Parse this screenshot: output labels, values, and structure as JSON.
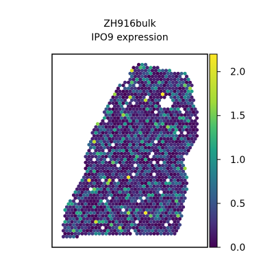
{
  "chart_data": {
    "type": "scatter",
    "title_line1": "ZH916bulk",
    "title_line2": "IPO9 expression",
    "xlabel": "",
    "ylabel": "",
    "colormap": "viridis",
    "colorbar": {
      "vmin": 0.0,
      "vmax": 2.2,
      "ticks": [
        0.0,
        0.5,
        1.0,
        1.5,
        2.0
      ],
      "tick_labels": [
        "0.0",
        "0.5",
        "1.0",
        "1.5",
        "2.0"
      ]
    },
    "spot_grid_step": 5,
    "tissue_outline": [
      [
        195,
        95
      ],
      [
        209,
        93
      ],
      [
        235,
        100
      ],
      [
        255,
        104
      ],
      [
        270,
        107
      ],
      [
        281,
        118
      ],
      [
        283,
        150
      ],
      [
        290,
        162
      ],
      [
        290,
        200
      ],
      [
        280,
        213
      ],
      [
        273,
        228
      ],
      [
        268,
        240
      ],
      [
        275,
        260
      ],
      [
        273,
        280
      ],
      [
        268,
        300
      ],
      [
        265,
        320
      ],
      [
        262,
        340
      ],
      [
        240,
        345
      ],
      [
        180,
        343
      ],
      [
        140,
        344
      ],
      [
        90,
        347
      ],
      [
        95,
        300
      ],
      [
        113,
        273
      ],
      [
        123,
        253
      ],
      [
        125,
        227
      ],
      [
        130,
        210
      ],
      [
        135,
        190
      ],
      [
        150,
        170
      ],
      [
        160,
        143
      ],
      [
        170,
        127
      ],
      [
        185,
        118
      ]
    ],
    "holes": [
      [
        [
          236,
          143
        ],
        [
          248,
          140
        ],
        [
          253,
          152
        ],
        [
          244,
          160
        ],
        [
          234,
          154
        ]
      ],
      [
        [
          262,
          160
        ],
        [
          268,
          158
        ],
        [
          270,
          165
        ],
        [
          264,
          168
        ]
      ]
    ]
  }
}
